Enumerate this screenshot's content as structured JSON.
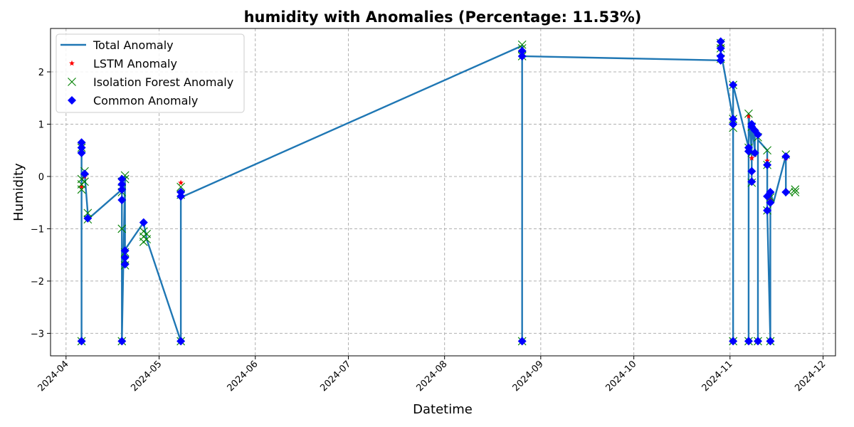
{
  "chart_data": {
    "type": "line",
    "title": "humidity with Anomalies (Percentage: 11.53%)",
    "xlabel": "Datetime",
    "ylabel": "Humidity",
    "xlim": [
      "2024-03-27",
      "2024-12-05"
    ],
    "ylim": [
      -3.43,
      2.83
    ],
    "x_ticks": [
      "2024-04-01",
      "2024-05-01",
      "2024-06-01",
      "2024-07-01",
      "2024-08-01",
      "2024-09-01",
      "2024-10-01",
      "2024-11-01",
      "2024-12-01"
    ],
    "x_tick_labels": [
      "2024-04",
      "2024-05",
      "2024-06",
      "2024-07",
      "2024-08",
      "2024-09",
      "2024-10",
      "2024-11",
      "2024-12"
    ],
    "y_ticks": [
      -3,
      -2,
      -1,
      0,
      1,
      2
    ],
    "y_tick_labels": [
      "−3",
      "−2",
      "−1",
      "0",
      "1",
      "2"
    ],
    "grid": true,
    "legend_position": "top-left",
    "colors": {
      "total": "#1f77b4",
      "lstm": "#ff0000",
      "isolation_forest": "#008000",
      "common": "#0000ff"
    },
    "legend": [
      "Total Anomaly",
      "LSTM Anomaly",
      "Isolation Forest Anomaly",
      "Common Anomaly"
    ],
    "series": [
      {
        "name": "Total Anomaly",
        "kind": "line",
        "points": [
          [
            "2024-04-06",
            -3.15
          ],
          [
            "2024-04-06",
            0.65
          ],
          [
            "2024-04-06",
            0.45
          ],
          [
            "2024-04-06",
            -0.1
          ],
          [
            "2024-04-07",
            0.05
          ],
          [
            "2024-04-08",
            -0.7
          ],
          [
            "2024-04-08",
            -0.82
          ],
          [
            "2024-04-19",
            -0.25
          ],
          [
            "2024-04-19",
            -0.05
          ],
          [
            "2024-04-19",
            -0.45
          ],
          [
            "2024-04-19",
            -3.15
          ],
          [
            "2024-04-20",
            0.0
          ],
          [
            "2024-04-20",
            -1.45
          ],
          [
            "2024-04-20",
            -1.7
          ],
          [
            "2024-04-20",
            -1.4
          ],
          [
            "2024-04-26",
            -0.88
          ],
          [
            "2024-04-27",
            -1.2
          ],
          [
            "2024-05-08",
            -3.15
          ],
          [
            "2024-05-08",
            -0.25
          ],
          [
            "2024-05-08",
            -0.4
          ],
          [
            "2024-08-26",
            2.5
          ],
          [
            "2024-08-26",
            -3.15
          ],
          [
            "2024-08-26",
            2.3
          ],
          [
            "2024-10-29",
            2.22
          ],
          [
            "2024-10-29",
            2.6
          ],
          [
            "2024-10-29",
            2.4
          ],
          [
            "2024-11-02",
            1.1
          ],
          [
            "2024-11-02",
            0.95
          ],
          [
            "2024-11-02",
            -3.15
          ],
          [
            "2024-11-02",
            1.75
          ],
          [
            "2024-11-07",
            0.55
          ],
          [
            "2024-11-07",
            -3.15
          ],
          [
            "2024-11-07",
            1.2
          ],
          [
            "2024-11-08",
            0.45
          ],
          [
            "2024-11-08",
            -0.12
          ],
          [
            "2024-11-08",
            1.0
          ],
          [
            "2024-11-09",
            0.5
          ],
          [
            "2024-11-09",
            0.88
          ],
          [
            "2024-11-10",
            0.8
          ],
          [
            "2024-11-10",
            -3.15
          ],
          [
            "2024-11-10",
            0.7
          ],
          [
            "2024-11-13",
            0.5
          ],
          [
            "2024-11-13",
            0.22
          ],
          [
            "2024-11-13",
            -0.38
          ],
          [
            "2024-11-13",
            -0.65
          ],
          [
            "2024-11-14",
            -3.15
          ],
          [
            "2024-11-14",
            -0.3
          ],
          [
            "2024-11-15",
            -0.5
          ],
          [
            "2024-11-19",
            0.4
          ],
          [
            "2024-11-19",
            -0.3
          ],
          [
            "2024-11-20",
            -0.32
          ]
        ]
      },
      {
        "name": "LSTM Anomaly",
        "kind": "star",
        "points": [
          [
            "2024-04-06",
            0.55
          ],
          [
            "2024-04-06",
            -0.2
          ],
          [
            "2024-04-07",
            0.0
          ],
          [
            "2024-04-19",
            -0.15
          ],
          [
            "2024-04-20",
            -1.55
          ],
          [
            "2024-05-08",
            -0.12
          ],
          [
            "2024-05-08",
            -0.3
          ],
          [
            "2024-08-26",
            2.42
          ],
          [
            "2024-10-29",
            2.5
          ],
          [
            "2024-11-02",
            1.0
          ],
          [
            "2024-11-07",
            1.15
          ],
          [
            "2024-11-08",
            0.35
          ],
          [
            "2024-11-09",
            0.42
          ],
          [
            "2024-11-13",
            0.3
          ],
          [
            "2024-11-14",
            -0.45
          ],
          [
            "2024-11-19",
            0.35
          ]
        ]
      },
      {
        "name": "Isolation Forest Anomaly",
        "kind": "x",
        "points": [
          [
            "2024-04-06",
            -3.15
          ],
          [
            "2024-04-06",
            0.55
          ],
          [
            "2024-04-06",
            -0.05
          ],
          [
            "2024-04-06",
            -0.15
          ],
          [
            "2024-04-06",
            -0.25
          ],
          [
            "2024-04-07",
            0.1
          ],
          [
            "2024-04-07",
            -0.1
          ],
          [
            "2024-04-08",
            -0.7
          ],
          [
            "2024-04-08",
            -0.82
          ],
          [
            "2024-04-19",
            -0.1
          ],
          [
            "2024-04-19",
            -0.3
          ],
          [
            "2024-04-19",
            -1.0
          ],
          [
            "2024-04-19",
            -3.15
          ],
          [
            "2024-04-20",
            0.02
          ],
          [
            "2024-04-20",
            -0.05
          ],
          [
            "2024-04-20",
            -1.45
          ],
          [
            "2024-04-20",
            -1.6
          ],
          [
            "2024-04-20",
            -1.7
          ],
          [
            "2024-04-26",
            -1.05
          ],
          [
            "2024-04-26",
            -1.15
          ],
          [
            "2024-04-26",
            -1.25
          ],
          [
            "2024-04-27",
            -1.1
          ],
          [
            "2024-04-27",
            -1.2
          ],
          [
            "2024-05-08",
            -0.2
          ],
          [
            "2024-05-08",
            -0.35
          ],
          [
            "2024-05-08",
            -3.15
          ],
          [
            "2024-08-26",
            2.52
          ],
          [
            "2024-08-26",
            2.45
          ],
          [
            "2024-08-26",
            2.3
          ],
          [
            "2024-08-26",
            -3.15
          ],
          [
            "2024-10-29",
            2.55
          ],
          [
            "2024-10-29",
            2.45
          ],
          [
            "2024-10-29",
            2.25
          ],
          [
            "2024-11-02",
            1.75
          ],
          [
            "2024-11-02",
            1.1
          ],
          [
            "2024-11-02",
            0.93
          ],
          [
            "2024-11-02",
            -3.15
          ],
          [
            "2024-11-07",
            1.2
          ],
          [
            "2024-11-07",
            0.55
          ],
          [
            "2024-11-07",
            -3.15
          ],
          [
            "2024-11-08",
            0.95
          ],
          [
            "2024-11-08",
            0.45
          ],
          [
            "2024-11-08",
            -0.12
          ],
          [
            "2024-11-10",
            0.75
          ],
          [
            "2024-11-10",
            -3.15
          ],
          [
            "2024-11-13",
            0.5
          ],
          [
            "2024-11-13",
            0.22
          ],
          [
            "2024-11-13",
            -0.65
          ],
          [
            "2024-11-14",
            -0.4
          ],
          [
            "2024-11-14",
            -3.15
          ],
          [
            "2024-11-19",
            0.42
          ],
          [
            "2024-11-20",
            -0.3
          ],
          [
            "2024-11-22",
            -0.25
          ],
          [
            "2024-11-22",
            -0.3
          ]
        ]
      },
      {
        "name": "Common Anomaly",
        "kind": "diamond",
        "points": [
          [
            "2024-04-06",
            -3.15
          ],
          [
            "2024-04-06",
            0.65
          ],
          [
            "2024-04-06",
            0.55
          ],
          [
            "2024-04-06",
            0.45
          ],
          [
            "2024-04-07",
            0.05
          ],
          [
            "2024-04-08",
            -0.8
          ],
          [
            "2024-04-19",
            -0.05
          ],
          [
            "2024-04-19",
            -0.15
          ],
          [
            "2024-04-19",
            -0.25
          ],
          [
            "2024-04-19",
            -0.45
          ],
          [
            "2024-04-19",
            -3.15
          ],
          [
            "2024-04-20",
            -1.42
          ],
          [
            "2024-04-20",
            -1.55
          ],
          [
            "2024-04-20",
            -1.68
          ],
          [
            "2024-04-26",
            -0.88
          ],
          [
            "2024-05-08",
            -3.15
          ],
          [
            "2024-05-08",
            -0.3
          ],
          [
            "2024-05-08",
            -0.38
          ],
          [
            "2024-08-26",
            2.4
          ],
          [
            "2024-08-26",
            2.3
          ],
          [
            "2024-08-26",
            -3.15
          ],
          [
            "2024-10-29",
            2.58
          ],
          [
            "2024-10-29",
            2.45
          ],
          [
            "2024-10-29",
            2.3
          ],
          [
            "2024-10-29",
            2.22
          ],
          [
            "2024-11-02",
            1.75
          ],
          [
            "2024-11-02",
            1.1
          ],
          [
            "2024-11-02",
            1.0
          ],
          [
            "2024-11-02",
            -3.15
          ],
          [
            "2024-11-07",
            0.55
          ],
          [
            "2024-11-07",
            0.48
          ],
          [
            "2024-11-07",
            -3.15
          ],
          [
            "2024-11-08",
            1.0
          ],
          [
            "2024-11-08",
            0.95
          ],
          [
            "2024-11-08",
            0.1
          ],
          [
            "2024-11-08",
            -0.1
          ],
          [
            "2024-11-09",
            0.88
          ],
          [
            "2024-11-09",
            0.45
          ],
          [
            "2024-11-10",
            0.8
          ],
          [
            "2024-11-10",
            -3.15
          ],
          [
            "2024-11-13",
            0.22
          ],
          [
            "2024-11-13",
            -0.38
          ],
          [
            "2024-11-13",
            -0.65
          ],
          [
            "2024-11-14",
            -0.3
          ],
          [
            "2024-11-14",
            -0.5
          ],
          [
            "2024-11-14",
            -3.15
          ],
          [
            "2024-11-19",
            0.38
          ],
          [
            "2024-11-19",
            -0.3
          ]
        ]
      }
    ]
  }
}
